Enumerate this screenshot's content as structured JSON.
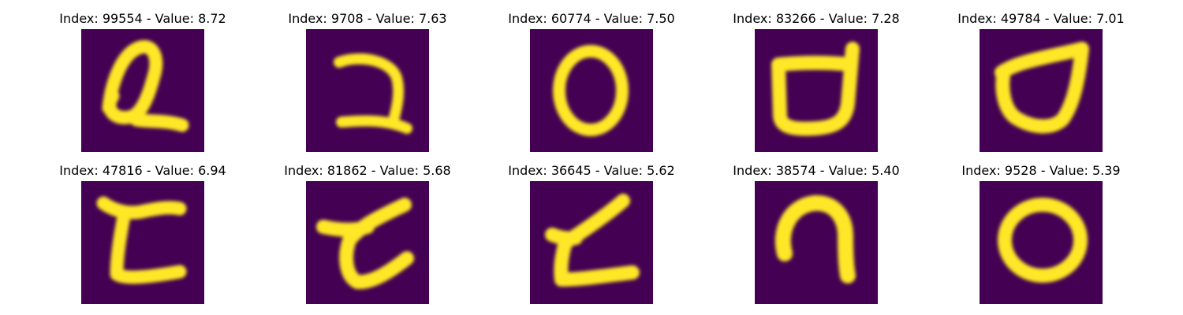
{
  "figure": {
    "colormap": "viridis",
    "background_color": "#440154",
    "stroke_color": "#fde725",
    "panels": [
      {
        "title": "Index: 99554 - Value: 8.72",
        "index": 99554,
        "value": 8.72,
        "glyph": "Q-like loop"
      },
      {
        "title": "Index: 9708 - Value: 7.63",
        "index": 9708,
        "value": 7.63,
        "glyph": "reversed C / 2-like"
      },
      {
        "title": "Index: 60774 - Value: 7.50",
        "index": 60774,
        "value": 7.5,
        "glyph": "O"
      },
      {
        "title": "Index: 83266 - Value: 7.28",
        "index": 83266,
        "value": 7.28,
        "glyph": "cup with handles"
      },
      {
        "title": "Index: 49784 - Value: 7.01",
        "index": 49784,
        "value": 7.01,
        "glyph": "rounded loop"
      },
      {
        "title": "Index: 47816 - Value: 6.94",
        "index": 47816,
        "value": 6.94,
        "glyph": "t-like"
      },
      {
        "title": "Index: 81862 - Value: 5.68",
        "index": 81862,
        "value": 5.68,
        "glyph": "t-like slanted"
      },
      {
        "title": "Index: 36645 - Value: 5.62",
        "index": 36645,
        "value": 5.62,
        "glyph": "L-like"
      },
      {
        "title": "Index: 38574 - Value: 5.40",
        "index": 38574,
        "value": 5.4,
        "glyph": "inverted U"
      },
      {
        "title": "Index: 9528 - Value: 5.39",
        "index": 9528,
        "value": 5.39,
        "glyph": "O"
      }
    ]
  }
}
